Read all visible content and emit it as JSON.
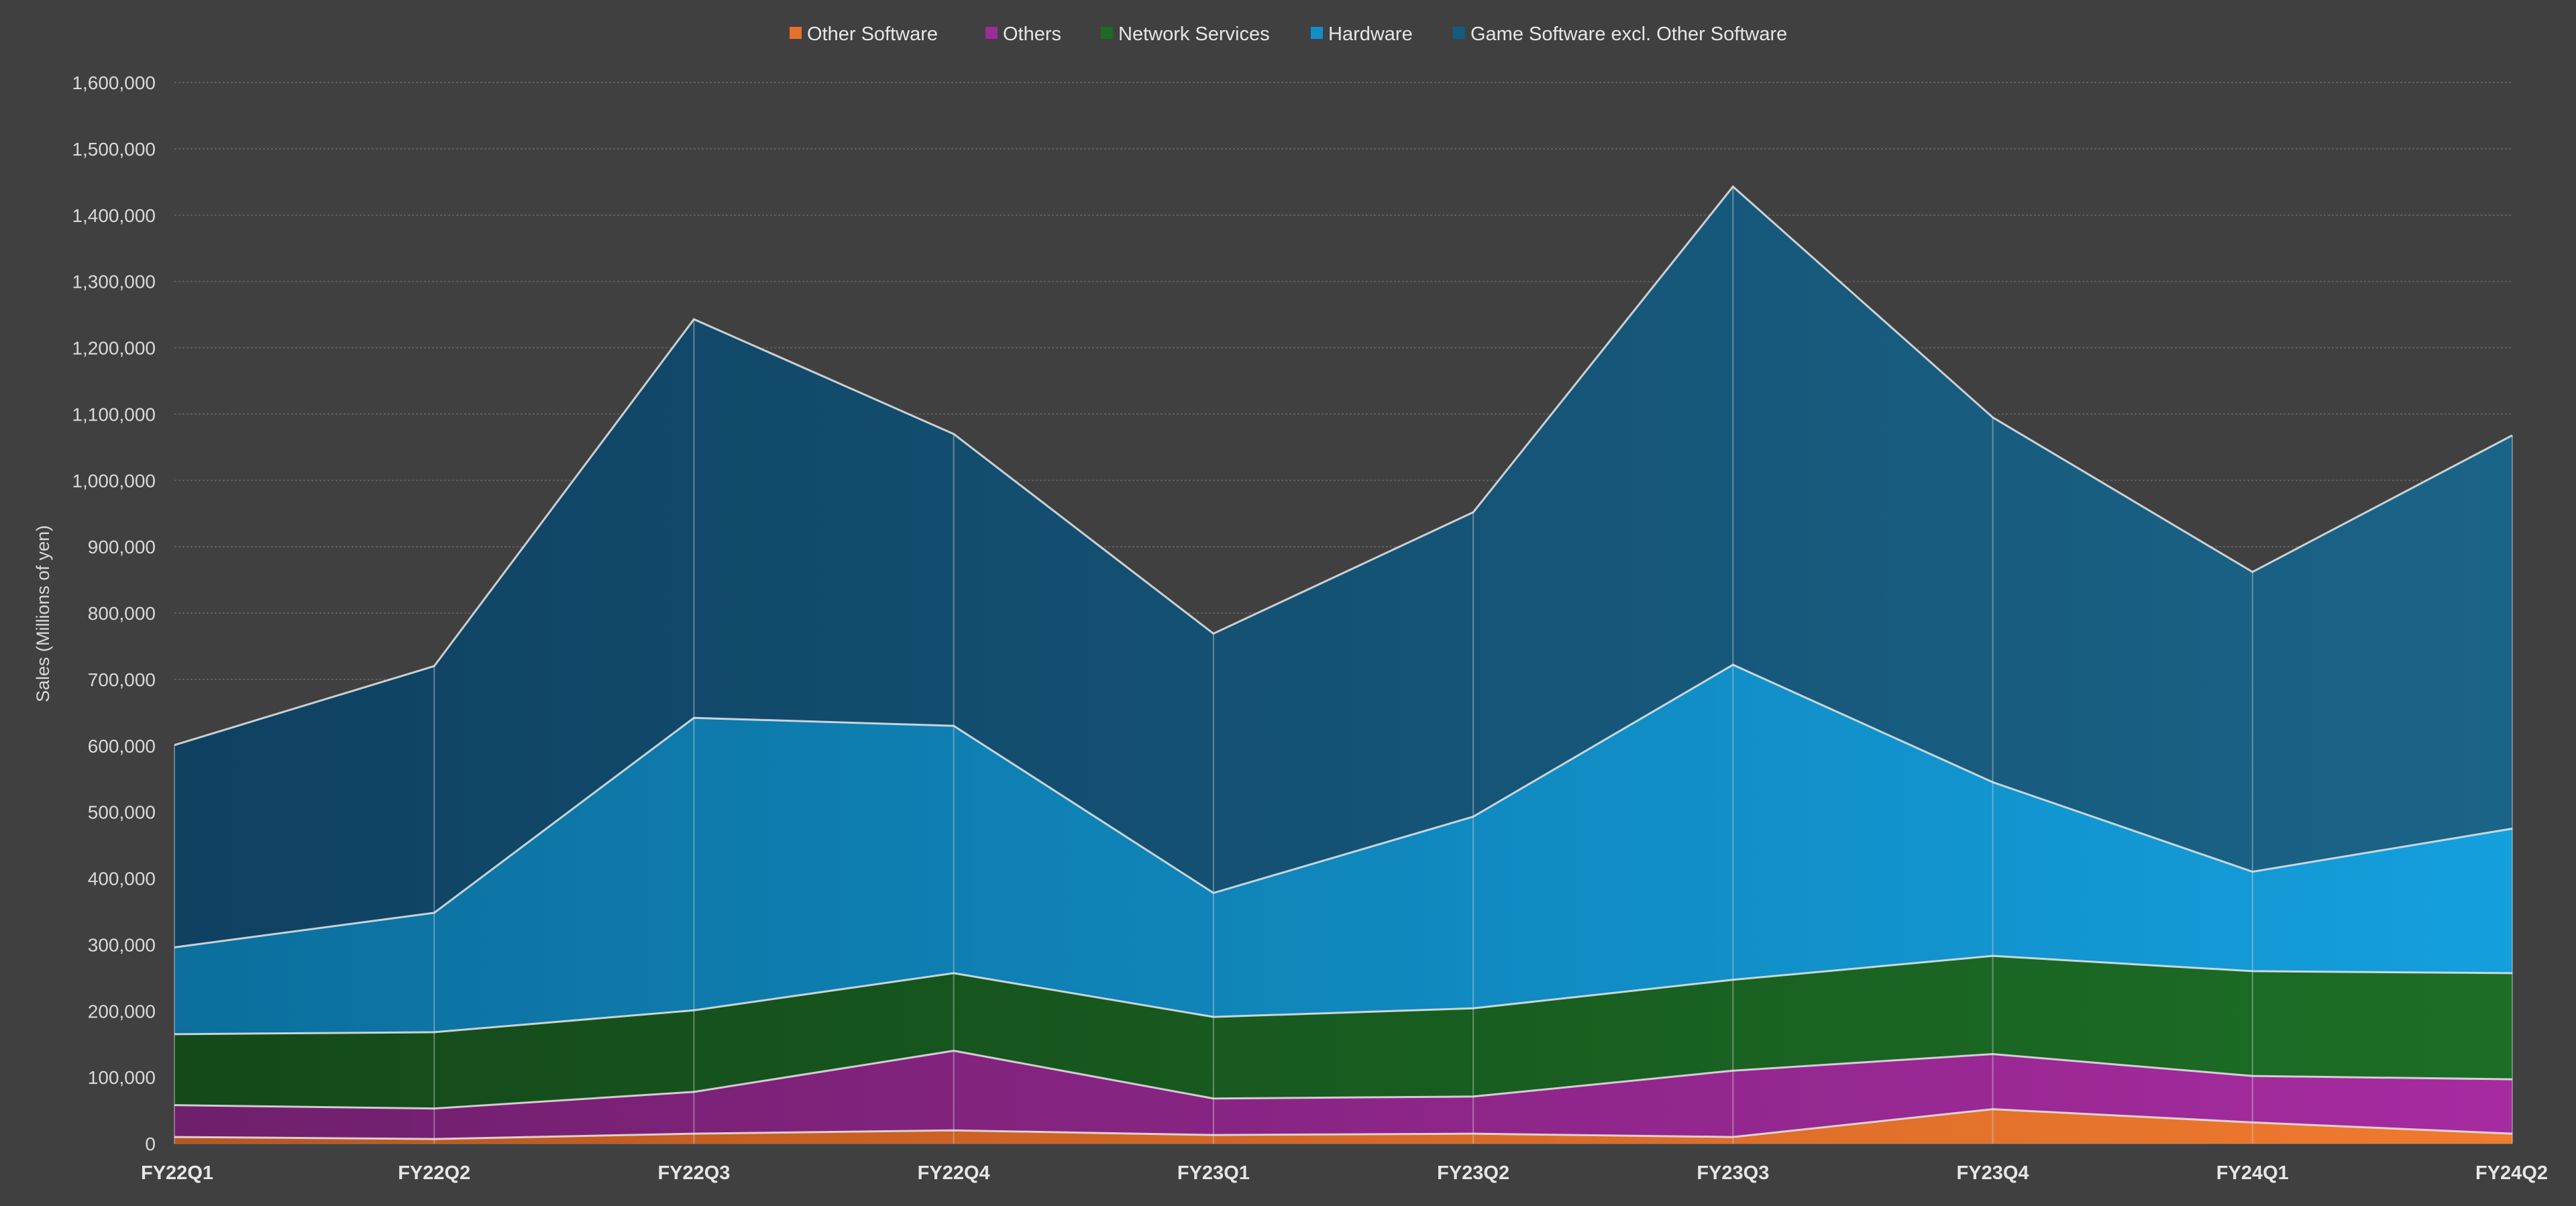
{
  "chart_data": {
    "type": "area",
    "stacked": true,
    "title": "",
    "xlabel": "",
    "ylabel": "Sales (Millions of yen)",
    "ylim": [
      0,
      1600000
    ],
    "ytick_step": 100000,
    "grid": true,
    "legend_position": "top",
    "categories": [
      "FY22Q1",
      "FY22Q2",
      "FY22Q3",
      "FY22Q4",
      "FY23Q1",
      "FY23Q2",
      "FY23Q3",
      "FY23Q4",
      "FY24Q1",
      "FY24Q2"
    ],
    "series": [
      {
        "name": "Other Software",
        "color": "#e8702a",
        "values": [
          10000,
          7000,
          15000,
          20000,
          13000,
          15000,
          10000,
          52000,
          32000,
          15000
        ]
      },
      {
        "name": "Others",
        "color": "#9b2d96",
        "values": [
          48000,
          46000,
          63000,
          120000,
          55000,
          56000,
          100000,
          83000,
          70000,
          82000
        ]
      },
      {
        "name": "Network Services",
        "color": "#1e6b24",
        "values": [
          107000,
          115000,
          123000,
          117000,
          123000,
          133000,
          137000,
          148000,
          158000,
          160000
        ]
      },
      {
        "name": "Hardware",
        "color": "#128ec9",
        "values": [
          131000,
          180000,
          441000,
          373000,
          187000,
          289000,
          475000,
          262000,
          150000,
          218000
        ]
      },
      {
        "name": "Game Software excl. Other Software",
        "color": "#135c80",
        "values": [
          305000,
          372000,
          601000,
          440000,
          391000,
          459000,
          721000,
          550000,
          452000,
          593000
        ]
      }
    ]
  }
}
